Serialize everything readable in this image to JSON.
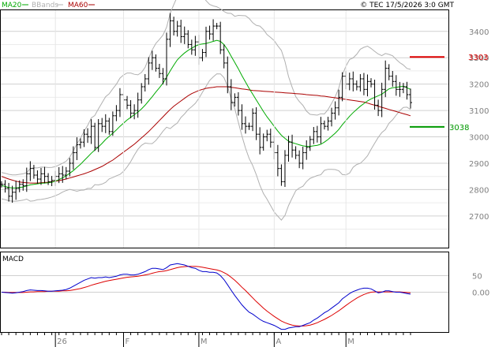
{
  "header": {
    "legend": [
      {
        "label": "MA20",
        "color": "#00aa00"
      },
      {
        "label": "BBands",
        "color": "#b0b0b0"
      },
      {
        "label": "MA60",
        "color": "#aa0000"
      }
    ],
    "copyright": "© TEC 17/5/2026 3:0 GMT"
  },
  "colors": {
    "price": "#000000",
    "ma20": "#00aa00",
    "ma60": "#aa0000",
    "bbands": "#b0b0b0",
    "grid": "#d0d0d0",
    "resistance": "#dd0000",
    "support": "#009900",
    "macd": "#0000cc",
    "signal": "#dd0000",
    "axis_text": "#808080"
  },
  "chart_data": [
    {
      "type": "line",
      "subtype": "ohlc-bars",
      "title": "",
      "y_ticks": [
        3400,
        3300,
        3200,
        3100,
        3000,
        2900,
        2800,
        2700
      ],
      "ylim": [
        2580,
        3480
      ],
      "x_ticks": [
        "26",
        "F",
        "M",
        "A",
        "M"
      ],
      "grid": true,
      "price_close": [
        2820,
        2805,
        2775,
        2790,
        2805,
        2820,
        2815,
        2860,
        2880,
        2855,
        2840,
        2860,
        2850,
        2830,
        2835,
        2850,
        2860,
        2855,
        2870,
        2900,
        2940,
        2970,
        2980,
        3010,
        3000,
        3040,
        2960,
        3050,
        3040,
        3060,
        3020,
        3080,
        3100,
        3160,
        3140,
        3120,
        3090,
        3100,
        3140,
        3190,
        3220,
        3280,
        3300,
        3260,
        3240,
        3220,
        3370,
        3440,
        3400,
        3420,
        3380,
        3390,
        3350,
        3330,
        3360,
        3300,
        3320,
        3400,
        3390,
        3420,
        3420,
        3330,
        3280,
        3190,
        3130,
        3150,
        3100,
        3050,
        3040,
        3040,
        3090,
        3010,
        2960,
        3000,
        3010,
        2980,
        2940,
        2880,
        2830,
        2930,
        2980,
        2950,
        2930,
        2900,
        2940,
        2960,
        2990,
        3020,
        3000,
        3050,
        3040,
        3060,
        3090,
        3110,
        3150,
        3230,
        3200,
        3220,
        3200,
        3190,
        3220,
        3180,
        3210,
        3200,
        3120,
        3100,
        3180,
        3260,
        3230,
        3210,
        3180,
        3180,
        3190,
        3160,
        3130
      ],
      "series": [
        {
          "name": "MA20",
          "values": [
            2815,
            2812,
            2808,
            2806,
            2806,
            2808,
            2810,
            2814,
            2818,
            2820,
            2822,
            2824,
            2825,
            2826,
            2828,
            2832,
            2838,
            2845,
            2852,
            2862,
            2872,
            2884,
            2896,
            2910,
            2924,
            2938,
            2950,
            2962,
            2975,
            2990,
            3002,
            3014,
            3026,
            3040,
            3052,
            3064,
            3074,
            3084,
            3094,
            3106,
            3120,
            3136,
            3152,
            3170,
            3186,
            3204,
            3226,
            3250,
            3272,
            3292,
            3306,
            3318,
            3328,
            3336,
            3344,
            3350,
            3352,
            3354,
            3358,
            3362,
            3366,
            3362,
            3350,
            3330,
            3306,
            3282,
            3258,
            3232,
            3208,
            3184,
            3162,
            3140,
            3118,
            3096,
            3076,
            3058,
            3040,
            3022,
            3006,
            2994,
            2984,
            2978,
            2974,
            2970,
            2966,
            2964,
            2964,
            2966,
            2968,
            2972,
            2980,
            2990,
            3002,
            3014,
            3028,
            3046,
            3062,
            3078,
            3092,
            3104,
            3116,
            3126,
            3136,
            3144,
            3150,
            3156,
            3162,
            3172,
            3182,
            3186,
            3188,
            3190,
            3192,
            3186,
            3180
          ]
        },
        {
          "name": "MA60",
          "values": [
            2850,
            2845,
            2840,
            2836,
            2832,
            2829,
            2827,
            2826,
            2825,
            2825,
            2825,
            2826,
            2827,
            2828,
            2830,
            2832,
            2834,
            2837,
            2840,
            2844,
            2848,
            2852,
            2856,
            2860,
            2865,
            2870,
            2876,
            2882,
            2888,
            2896,
            2904,
            2912,
            2922,
            2932,
            2942,
            2952,
            2962,
            2972,
            2984,
            2996,
            3008,
            3020,
            3034,
            3048,
            3062,
            3076,
            3090,
            3104,
            3116,
            3126,
            3136,
            3146,
            3156,
            3164,
            3170,
            3176,
            3180,
            3184,
            3186,
            3188,
            3190,
            3190,
            3190,
            3190,
            3188,
            3186,
            3184,
            3182,
            3180,
            3178,
            3176,
            3175,
            3174,
            3173,
            3172,
            3171,
            3170,
            3169,
            3168,
            3167,
            3166,
            3165,
            3164,
            3163,
            3162,
            3160,
            3159,
            3158,
            3157,
            3155,
            3154,
            3152,
            3150,
            3148,
            3146,
            3144,
            3142,
            3140,
            3138,
            3136,
            3134,
            3132,
            3128,
            3124,
            3120,
            3116,
            3112,
            3108,
            3104,
            3100,
            3096,
            3092,
            3088,
            3084,
            3080
          ]
        }
      ],
      "annotations": [
        {
          "label": "3303",
          "y": 3303,
          "kind": "resistance"
        },
        {
          "label": "3038",
          "y": 3038,
          "kind": "support"
        }
      ]
    },
    {
      "type": "line",
      "title": "MACD",
      "y_ticks": [
        50,
        0
      ],
      "ylim": [
        -120,
        120
      ],
      "series": [
        {
          "name": "MACD",
          "values": [
            0,
            -1,
            -2,
            -3,
            -2,
            0,
            2,
            5,
            7,
            6,
            5,
            5,
            4,
            3,
            3,
            4,
            5,
            6,
            8,
            12,
            18,
            24,
            30,
            36,
            40,
            44,
            42,
            44,
            44,
            46,
            44,
            46,
            48,
            52,
            54,
            54,
            52,
            52,
            54,
            58,
            62,
            68,
            72,
            72,
            70,
            68,
            74,
            82,
            84,
            86,
            84,
            82,
            78,
            74,
            72,
            66,
            62,
            62,
            60,
            60,
            58,
            50,
            38,
            22,
            6,
            -10,
            -24,
            -38,
            -50,
            -60,
            -66,
            -74,
            -82,
            -88,
            -92,
            -96,
            -100,
            -106,
            -112,
            -112,
            -108,
            -106,
            -104,
            -104,
            -100,
            -96,
            -92,
            -84,
            -78,
            -70,
            -62,
            -56,
            -48,
            -40,
            -32,
            -20,
            -12,
            -4,
            2,
            6,
            10,
            12,
            12,
            10,
            4,
            -2,
            0,
            4,
            4,
            2,
            0,
            0,
            -2,
            -4,
            -6
          ]
        },
        {
          "name": "Signal",
          "values": [
            0,
            0,
            -1,
            -1,
            -1,
            -1,
            -1,
            0,
            1,
            1,
            2,
            2,
            2,
            3,
            3,
            3,
            3,
            4,
            4,
            5,
            7,
            9,
            11,
            14,
            17,
            21,
            24,
            27,
            30,
            33,
            35,
            37,
            39,
            41,
            43,
            45,
            46,
            47,
            48,
            50,
            52,
            54,
            57,
            60,
            62,
            63,
            65,
            68,
            71,
            74,
            76,
            77,
            78,
            78,
            78,
            77,
            75,
            73,
            71,
            69,
            67,
            64,
            59,
            53,
            45,
            36,
            26,
            15,
            5,
            -6,
            -17,
            -28,
            -38,
            -48,
            -57,
            -65,
            -73,
            -80,
            -87,
            -92,
            -96,
            -99,
            -101,
            -102,
            -102,
            -101,
            -99,
            -96,
            -92,
            -87,
            -82,
            -76,
            -70,
            -63,
            -56,
            -48,
            -40,
            -32,
            -25,
            -18,
            -12,
            -7,
            -3,
            0,
            1,
            1,
            1,
            1,
            1,
            1,
            1,
            1,
            0,
            -1,
            -2
          ]
        }
      ]
    }
  ]
}
